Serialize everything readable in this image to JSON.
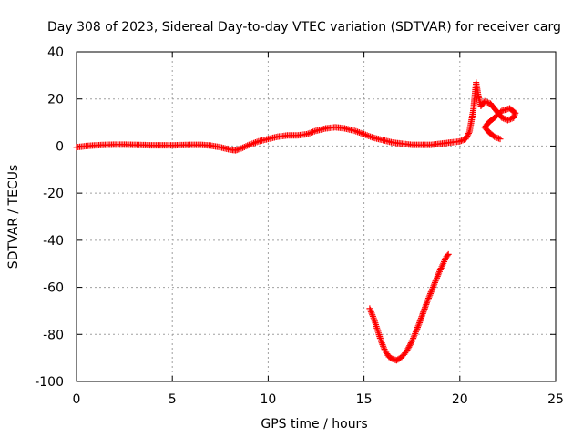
{
  "chart_data": {
    "type": "scatter",
    "title": "Day 308 of 2023, Sidereal Day-to-day VTEC variation (SDTVAR) for receiver carg",
    "xlabel": "GPS time / hours",
    "ylabel": "SDTVAR / TECUs",
    "xlim": [
      0,
      25
    ],
    "ylim": [
      -100,
      40
    ],
    "xticks": [
      "0",
      "5",
      "10",
      "15",
      "20",
      "25"
    ],
    "yticks": [
      "-100",
      "-80",
      "-60",
      "-40",
      "-20",
      "0",
      "20",
      "40"
    ],
    "grid": true,
    "marker": "+",
    "colors": {
      "series": "#ff0000",
      "grid": "#a0a0a0",
      "frame": "#000000"
    },
    "series": [
      {
        "name": "main-trace",
        "points": [
          [
            0.0,
            -0.5
          ],
          [
            0.5,
            0.0
          ],
          [
            1.0,
            0.3
          ],
          [
            1.5,
            0.5
          ],
          [
            2.0,
            0.6
          ],
          [
            2.5,
            0.6
          ],
          [
            3.0,
            0.5
          ],
          [
            3.5,
            0.4
          ],
          [
            4.0,
            0.3
          ],
          [
            4.5,
            0.3
          ],
          [
            5.0,
            0.3
          ],
          [
            5.5,
            0.4
          ],
          [
            6.0,
            0.5
          ],
          [
            6.5,
            0.5
          ],
          [
            7.0,
            0.2
          ],
          [
            7.5,
            -0.5
          ],
          [
            8.0,
            -1.5
          ],
          [
            8.3,
            -1.8
          ],
          [
            8.6,
            -1.0
          ],
          [
            9.0,
            0.5
          ],
          [
            9.5,
            2.0
          ],
          [
            10.0,
            3.0
          ],
          [
            10.5,
            4.0
          ],
          [
            11.0,
            4.5
          ],
          [
            11.5,
            4.5
          ],
          [
            12.0,
            5.0
          ],
          [
            12.5,
            6.5
          ],
          [
            13.0,
            7.5
          ],
          [
            13.5,
            8.0
          ],
          [
            14.0,
            7.5
          ],
          [
            14.5,
            6.5
          ],
          [
            15.0,
            5.0
          ],
          [
            15.5,
            3.5
          ],
          [
            16.0,
            2.5
          ],
          [
            16.5,
            1.5
          ],
          [
            17.0,
            1.0
          ],
          [
            17.5,
            0.5
          ],
          [
            18.0,
            0.5
          ],
          [
            18.5,
            0.5
          ],
          [
            19.0,
            1.0
          ],
          [
            19.5,
            1.5
          ],
          [
            20.0,
            2.0
          ],
          [
            20.3,
            3.0
          ],
          [
            20.5,
            6.0
          ],
          [
            20.7,
            15.0
          ],
          [
            20.85,
            27.0
          ],
          [
            20.95,
            22.0
          ],
          [
            21.1,
            17.0
          ],
          [
            21.3,
            19.0
          ],
          [
            21.6,
            18.0
          ],
          [
            21.9,
            15.0
          ],
          [
            22.2,
            12.0
          ],
          [
            22.5,
            11.0
          ],
          [
            22.8,
            12.0
          ],
          [
            22.9,
            14.0
          ],
          [
            22.6,
            16.0
          ],
          [
            22.2,
            15.0
          ],
          [
            21.8,
            12.0
          ],
          [
            21.5,
            10.0
          ],
          [
            21.3,
            8.0
          ],
          [
            21.5,
            6.0
          ],
          [
            21.8,
            4.0
          ],
          [
            22.1,
            3.0
          ]
        ]
      },
      {
        "name": "lower-arc",
        "points": [
          [
            15.3,
            -69.0
          ],
          [
            15.5,
            -73.0
          ],
          [
            15.7,
            -78.0
          ],
          [
            15.9,
            -83.0
          ],
          [
            16.1,
            -87.0
          ],
          [
            16.3,
            -89.5
          ],
          [
            16.5,
            -90.5
          ],
          [
            16.7,
            -91.0
          ],
          [
            16.9,
            -90.0
          ],
          [
            17.1,
            -88.5
          ],
          [
            17.3,
            -86.0
          ],
          [
            17.5,
            -83.0
          ],
          [
            17.7,
            -79.0
          ],
          [
            17.9,
            -75.0
          ],
          [
            18.1,
            -70.5
          ],
          [
            18.3,
            -66.0
          ],
          [
            18.5,
            -62.0
          ],
          [
            18.7,
            -58.0
          ],
          [
            18.9,
            -54.0
          ],
          [
            19.1,
            -50.5
          ],
          [
            19.3,
            -47.0
          ],
          [
            19.4,
            -46.0
          ]
        ]
      }
    ]
  }
}
